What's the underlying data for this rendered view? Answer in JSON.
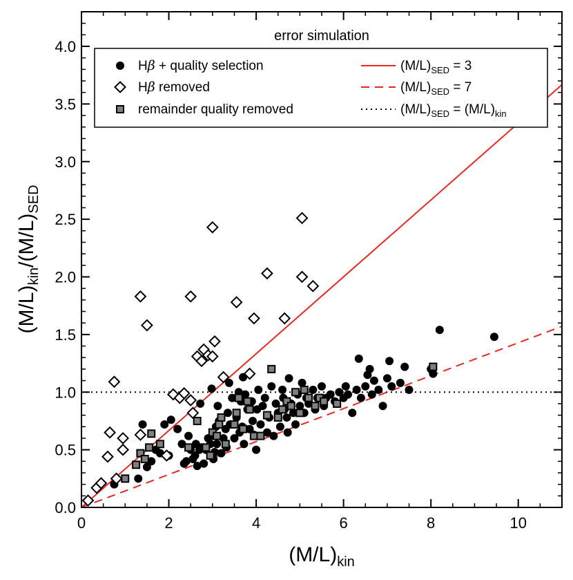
{
  "chart_data": {
    "type": "scatter",
    "title": "error simulation",
    "xlabel": {
      "base": "(M/L)",
      "sub": "kin"
    },
    "ylabel": {
      "base": "(M/L)",
      "sub": "kin",
      "mid": "/(M/L)",
      "sub2": "SED"
    },
    "xlim": [
      0,
      11
    ],
    "ylim": [
      0,
      4.3
    ],
    "x_ticks": [
      0,
      2,
      4,
      6,
      8,
      10
    ],
    "x_tick_labels": [
      "0",
      "2",
      "4",
      "6",
      "8",
      "10"
    ],
    "y_ticks": [
      0,
      0.5,
      1,
      1.5,
      2,
      2.5,
      3,
      3.5,
      4
    ],
    "y_tick_labels": [
      "0.0",
      "0.5",
      "1.0",
      "1.5",
      "2.0",
      "2.5",
      "3.0",
      "3.5",
      "4.0"
    ],
    "colors": {
      "line": "#e8281e",
      "square_fill": "#808080",
      "ink": "#000000"
    },
    "legend": {
      "placement": "top",
      "markers": [
        {
          "id": "hbeta",
          "marker": "circle",
          "text_parts": [
            "H",
            "β",
            " + quality selection"
          ]
        },
        {
          "id": "removed",
          "marker": "diamond",
          "text_parts": [
            "H",
            "β",
            " removed"
          ]
        },
        {
          "id": "remainder",
          "marker": "square",
          "text_parts": [
            "remainder quality removed"
          ]
        }
      ],
      "lines": [
        {
          "id": "sed3",
          "style": "solid",
          "label": "(M/L)",
          "sub": "SED",
          "suffix": " = 3"
        },
        {
          "id": "sed7",
          "style": "dashed",
          "label": "(M/L)",
          "sub": "SED",
          "suffix": " = 7"
        },
        {
          "id": "equal",
          "style": "dotted",
          "label": "(M/L)",
          "sub": "SED",
          "mid": " = (M/L)",
          "sub2": "kin"
        }
      ]
    },
    "lines": [
      {
        "name": "(M/L)SED = 3",
        "style": "solid",
        "x": [
          0,
          11
        ],
        "y": [
          0,
          3.667
        ]
      },
      {
        "name": "(M/L)SED = 7",
        "style": "dashed",
        "x": [
          0,
          11
        ],
        "y": [
          0,
          1.571
        ]
      },
      {
        "name": "(M/L)SED = (M/L)kin",
        "style": "dotted",
        "x": [
          0,
          11
        ],
        "y": [
          1,
          1
        ]
      }
    ],
    "series": [
      {
        "name": "Hβ + quality selection",
        "marker": "circle",
        "points": [
          [
            0.75,
            0.2
          ],
          [
            1.3,
            0.25
          ],
          [
            1.4,
            0.72
          ],
          [
            1.5,
            0.35
          ],
          [
            1.6,
            0.4
          ],
          [
            1.7,
            0.5
          ],
          [
            1.8,
            0.47
          ],
          [
            1.9,
            0.72
          ],
          [
            2.0,
            0.45
          ],
          [
            2.05,
            0.76
          ],
          [
            2.2,
            0.68
          ],
          [
            2.3,
            0.55
          ],
          [
            2.35,
            0.38
          ],
          [
            2.4,
            0.4
          ],
          [
            2.45,
            0.62
          ],
          [
            2.5,
            0.5
          ],
          [
            2.55,
            0.42
          ],
          [
            2.6,
            0.45
          ],
          [
            2.62,
            0.55
          ],
          [
            2.65,
            0.36
          ],
          [
            2.7,
            0.5
          ],
          [
            2.72,
            0.9
          ],
          [
            2.75,
            0.52
          ],
          [
            2.8,
            0.38
          ],
          [
            2.85,
            0.5
          ],
          [
            2.9,
            0.6
          ],
          [
            2.95,
            0.55
          ],
          [
            2.98,
            1.03
          ],
          [
            3.0,
            0.62
          ],
          [
            3.02,
            0.42
          ],
          [
            3.05,
            0.48
          ],
          [
            3.08,
            0.7
          ],
          [
            3.1,
            0.55
          ],
          [
            3.12,
            0.88
          ],
          [
            3.15,
            0.75
          ],
          [
            3.2,
            0.47
          ],
          [
            3.25,
            0.6
          ],
          [
            3.3,
            0.68
          ],
          [
            3.32,
            0.52
          ],
          [
            3.35,
            0.82
          ],
          [
            3.38,
            1.08
          ],
          [
            3.4,
            0.72
          ],
          [
            3.45,
            0.95
          ],
          [
            3.5,
            0.6
          ],
          [
            3.55,
            0.78
          ],
          [
            3.6,
            1.0
          ],
          [
            3.62,
            0.65
          ],
          [
            3.65,
            0.92
          ],
          [
            3.68,
            0.7
          ],
          [
            3.7,
            1.13
          ],
          [
            3.72,
            0.55
          ],
          [
            3.75,
            0.98
          ],
          [
            3.8,
            0.85
          ],
          [
            3.85,
            0.68
          ],
          [
            3.9,
            0.92
          ],
          [
            3.92,
            0.75
          ],
          [
            3.95,
            0.63
          ],
          [
            4.0,
            0.5
          ],
          [
            4.02,
            0.85
          ],
          [
            4.05,
            1.02
          ],
          [
            4.1,
            0.72
          ],
          [
            4.15,
            0.88
          ],
          [
            4.2,
            0.95
          ],
          [
            4.25,
            0.65
          ],
          [
            4.3,
            0.78
          ],
          [
            4.35,
            1.05
          ],
          [
            4.4,
            0.62
          ],
          [
            4.45,
            0.9
          ],
          [
            4.5,
            0.82
          ],
          [
            4.55,
            0.7
          ],
          [
            4.6,
            1.02
          ],
          [
            4.62,
            0.95
          ],
          [
            4.65,
            0.85
          ],
          [
            4.7,
            0.78
          ],
          [
            4.72,
            0.65
          ],
          [
            4.75,
            1.12
          ],
          [
            4.8,
            0.9
          ],
          [
            4.85,
            0.82
          ],
          [
            4.9,
            0.72
          ],
          [
            4.95,
            0.98
          ],
          [
            5.0,
            0.88
          ],
          [
            5.05,
            1.08
          ],
          [
            5.1,
            0.82
          ],
          [
            5.15,
            0.95
          ],
          [
            5.2,
            0.9
          ],
          [
            5.3,
            1.02
          ],
          [
            5.35,
            0.85
          ],
          [
            5.4,
            0.95
          ],
          [
            5.5,
            1.05
          ],
          [
            5.55,
            0.88
          ],
          [
            5.6,
            0.95
          ],
          [
            5.7,
            0.98
          ],
          [
            5.8,
            0.92
          ],
          [
            5.9,
            1.0
          ],
          [
            6.0,
            0.95
          ],
          [
            6.05,
            1.05
          ],
          [
            6.1,
            0.98
          ],
          [
            6.2,
            0.82
          ],
          [
            6.3,
            1.02
          ],
          [
            6.35,
            1.29
          ],
          [
            6.4,
            0.95
          ],
          [
            6.5,
            1.05
          ],
          [
            6.55,
            1.15
          ],
          [
            6.6,
            1.2
          ],
          [
            6.65,
            0.98
          ],
          [
            6.7,
            1.1
          ],
          [
            6.8,
            1.02
          ],
          [
            6.9,
            0.88
          ],
          [
            7.0,
            1.12
          ],
          [
            7.05,
            1.27
          ],
          [
            7.1,
            1.05
          ],
          [
            7.3,
            1.08
          ],
          [
            7.4,
            1.22
          ],
          [
            7.5,
            1.02
          ],
          [
            8.0,
            1.2
          ],
          [
            8.05,
            1.16
          ],
          [
            8.2,
            1.54
          ],
          [
            9.45,
            1.48
          ]
        ]
      },
      {
        "name": "Hβ removed",
        "marker": "diamond",
        "points": [
          [
            0.15,
            0.06
          ],
          [
            0.35,
            0.17
          ],
          [
            0.45,
            0.21
          ],
          [
            0.6,
            0.44
          ],
          [
            0.65,
            0.65
          ],
          [
            0.75,
            1.09
          ],
          [
            0.8,
            0.25
          ],
          [
            0.95,
            0.5
          ],
          [
            0.95,
            0.6
          ],
          [
            1.35,
            0.63
          ],
          [
            1.35,
            1.83
          ],
          [
            1.5,
            1.58
          ],
          [
            1.95,
            0.45
          ],
          [
            2.1,
            0.98
          ],
          [
            2.25,
            0.95
          ],
          [
            2.35,
            0.99
          ],
          [
            2.5,
            0.93
          ],
          [
            2.5,
            1.83
          ],
          [
            2.55,
            0.82
          ],
          [
            2.65,
            1.31
          ],
          [
            2.75,
            1.27
          ],
          [
            2.8,
            1.37
          ],
          [
            2.9,
            1.32
          ],
          [
            3.0,
            2.43
          ],
          [
            3.0,
            1.31
          ],
          [
            3.05,
            1.44
          ],
          [
            3.25,
            1.13
          ],
          [
            3.55,
            1.78
          ],
          [
            3.85,
            1.16
          ],
          [
            3.95,
            1.64
          ],
          [
            4.25,
            2.03
          ],
          [
            4.65,
            1.64
          ],
          [
            5.05,
            2.51
          ],
          [
            5.05,
            2.0
          ],
          [
            5.3,
            1.92
          ]
        ]
      },
      {
        "name": "remainder quality removed",
        "marker": "square",
        "points": [
          [
            1.0,
            0.25
          ],
          [
            1.25,
            0.37
          ],
          [
            1.35,
            0.47
          ],
          [
            1.45,
            0.42
          ],
          [
            1.55,
            0.52
          ],
          [
            1.6,
            0.64
          ],
          [
            1.8,
            0.55
          ],
          [
            2.45,
            0.52
          ],
          [
            2.65,
            0.75
          ],
          [
            2.85,
            0.52
          ],
          [
            2.95,
            0.45
          ],
          [
            3.0,
            0.65
          ],
          [
            3.1,
            0.62
          ],
          [
            3.15,
            0.72
          ],
          [
            3.2,
            0.78
          ],
          [
            3.3,
            0.55
          ],
          [
            3.5,
            0.72
          ],
          [
            3.55,
            0.82
          ],
          [
            3.6,
            0.95
          ],
          [
            3.7,
            0.68
          ],
          [
            3.8,
            0.92
          ],
          [
            3.85,
            0.85
          ],
          [
            3.95,
            0.62
          ],
          [
            4.1,
            0.62
          ],
          [
            4.25,
            0.8
          ],
          [
            4.35,
            1.2
          ],
          [
            4.5,
            0.78
          ],
          [
            4.6,
            0.85
          ],
          [
            4.7,
            0.92
          ],
          [
            4.8,
            0.88
          ],
          [
            4.9,
            1.0
          ],
          [
            5.0,
            0.82
          ],
          [
            5.1,
            1.02
          ],
          [
            5.2,
            0.95
          ],
          [
            5.35,
            0.88
          ],
          [
            5.45,
            0.95
          ],
          [
            5.55,
            0.92
          ],
          [
            5.85,
            0.9
          ],
          [
            8.05,
            1.22
          ]
        ]
      }
    ]
  }
}
